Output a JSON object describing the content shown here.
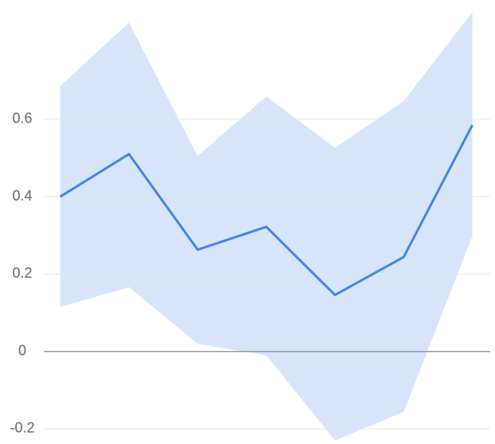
{
  "chart_data": {
    "type": "line",
    "x": [
      0,
      1,
      2,
      3,
      4,
      5,
      6
    ],
    "xlim": [
      -0.24,
      6.26
    ],
    "series": [
      {
        "color": "#4285e0",
        "band_color": "#d7e4fa",
        "values": [
          0.4,
          0.51,
          0.263,
          0.322,
          0.146,
          0.244,
          0.585
        ],
        "upper": [
          0.686,
          0.85,
          0.505,
          0.659,
          0.526,
          0.647,
          0.877
        ],
        "lower": [
          0.115,
          0.166,
          0.02,
          -0.01,
          -0.23,
          -0.156,
          0.298
        ]
      }
    ],
    "ylim": [
      -0.235,
      0.9
    ],
    "yticks": [
      -0.2,
      0,
      0.2,
      0.4,
      0.6
    ],
    "grid": true
  }
}
